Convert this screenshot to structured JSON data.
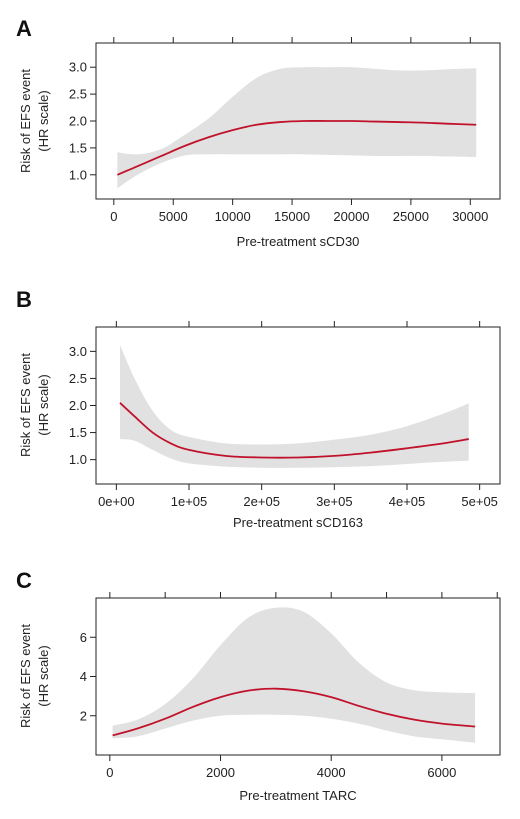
{
  "figure": {
    "colors": {
      "curve": "#c0122b",
      "band": "#dcdcdc",
      "axis": "#222222"
    }
  },
  "chart_data": [
    {
      "type": "line",
      "panel_label": "A",
      "xlabel": "Pre-treatment sCD30",
      "ylabel": [
        "Risk of EFS event",
        "(HR scale)"
      ],
      "xlim": [
        -1500,
        32500
      ],
      "ylim": [
        0.55,
        3.45
      ],
      "x_ticks": [
        {
          "value": 0,
          "label": "0"
        },
        {
          "value": 5000,
          "label": "5000"
        },
        {
          "value": 10000,
          "label": "10000"
        },
        {
          "value": 15000,
          "label": "15000"
        },
        {
          "value": 20000,
          "label": "20000"
        },
        {
          "value": 25000,
          "label": "25000"
        },
        {
          "value": 30000,
          "label": "30000"
        }
      ],
      "y_ticks": [
        {
          "value": 1.0,
          "label": "1.0"
        },
        {
          "value": 1.5,
          "label": "1.5"
        },
        {
          "value": 2.0,
          "label": "2.0"
        },
        {
          "value": 2.5,
          "label": "2.5"
        },
        {
          "value": 3.0,
          "label": "3.0"
        }
      ],
      "top_ticks": [
        0,
        5000,
        10000,
        15000,
        20000,
        25000,
        30000
      ],
      "grid": false,
      "series": [
        {
          "x": [
            300,
            2000,
            4000,
            6000,
            8000,
            10000,
            12000,
            14000,
            16000,
            18000,
            20000,
            22000,
            24000,
            26000,
            28000,
            30500
          ],
          "y": [
            1.0,
            1.16,
            1.35,
            1.54,
            1.7,
            1.83,
            1.93,
            1.98,
            2.0,
            2.0,
            2.0,
            1.99,
            1.98,
            1.97,
            1.95,
            1.93
          ],
          "lower": [
            0.75,
            1.0,
            1.22,
            1.36,
            1.38,
            1.38,
            1.38,
            1.38,
            1.38,
            1.37,
            1.36,
            1.35,
            1.35,
            1.35,
            1.34,
            1.33
          ],
          "upper": [
            1.42,
            1.38,
            1.48,
            1.75,
            2.05,
            2.45,
            2.8,
            2.97,
            3.0,
            3.0,
            3.0,
            2.97,
            2.94,
            2.94,
            2.96,
            2.98
          ]
        }
      ]
    },
    {
      "type": "line",
      "panel_label": "B",
      "xlabel": "Pre-treatment sCD163",
      "ylabel": [
        "Risk of EFS event",
        "(HR scale)"
      ],
      "xlim": [
        -28000,
        528000
      ],
      "ylim": [
        0.55,
        3.45
      ],
      "x_ticks": [
        {
          "value": 0,
          "label": "0e+00"
        },
        {
          "value": 100000,
          "label": "1e+05"
        },
        {
          "value": 200000,
          "label": "2e+05"
        },
        {
          "value": 300000,
          "label": "3e+05"
        },
        {
          "value": 400000,
          "label": "4e+05"
        },
        {
          "value": 500000,
          "label": "5e+05"
        }
      ],
      "y_ticks": [
        {
          "value": 1.0,
          "label": "1.0"
        },
        {
          "value": 1.5,
          "label": "1.5"
        },
        {
          "value": 2.0,
          "label": "2.0"
        },
        {
          "value": 2.5,
          "label": "2.5"
        },
        {
          "value": 3.0,
          "label": "3.0"
        }
      ],
      "top_ticks": [
        0,
        100000,
        200000,
        300000,
        400000,
        500000
      ],
      "grid": false,
      "series": [
        {
          "x": [
            5000,
            25000,
            50000,
            75000,
            100000,
            150000,
            200000,
            250000,
            300000,
            350000,
            400000,
            450000,
            485000
          ],
          "y": [
            2.05,
            1.8,
            1.5,
            1.3,
            1.18,
            1.07,
            1.04,
            1.04,
            1.07,
            1.13,
            1.21,
            1.3,
            1.38
          ],
          "lower": [
            1.38,
            1.35,
            1.18,
            1.02,
            0.93,
            0.87,
            0.85,
            0.85,
            0.86,
            0.88,
            0.92,
            0.96,
            0.98
          ],
          "upper": [
            3.12,
            2.5,
            1.9,
            1.55,
            1.42,
            1.3,
            1.28,
            1.3,
            1.37,
            1.46,
            1.62,
            1.85,
            2.04
          ]
        }
      ]
    },
    {
      "type": "line",
      "panel_label": "C",
      "xlabel": "Pre-treatment TARC",
      "ylabel": [
        "Risk of EFS event",
        "(HR scale)"
      ],
      "xlim": [
        -250,
        7050
      ],
      "ylim": [
        0.0,
        8.0
      ],
      "x_ticks": [
        {
          "value": 0,
          "label": "0"
        },
        {
          "value": 2000,
          "label": "2000"
        },
        {
          "value": 4000,
          "label": "4000"
        },
        {
          "value": 6000,
          "label": "6000"
        }
      ],
      "y_ticks": [
        {
          "value": 2,
          "label": "2"
        },
        {
          "value": 4,
          "label": "4"
        },
        {
          "value": 6,
          "label": "6"
        }
      ],
      "top_ticks": [
        0,
        1000,
        2000,
        3000,
        4000,
        5000,
        6000,
        7000
      ],
      "grid": false,
      "series": [
        {
          "x": [
            50,
            500,
            1000,
            1500,
            2000,
            2500,
            3000,
            3500,
            4000,
            4500,
            5000,
            5500,
            6000,
            6600
          ],
          "y": [
            1.0,
            1.35,
            1.85,
            2.45,
            2.95,
            3.28,
            3.38,
            3.25,
            2.95,
            2.5,
            2.1,
            1.8,
            1.6,
            1.45
          ],
          "lower": [
            0.85,
            0.95,
            1.35,
            1.75,
            2.0,
            2.05,
            2.05,
            2.0,
            1.85,
            1.6,
            1.25,
            0.95,
            0.8,
            0.62
          ],
          "upper": [
            1.5,
            1.8,
            2.6,
            3.9,
            5.6,
            7.0,
            7.5,
            7.3,
            6.2,
            4.7,
            3.7,
            3.3,
            3.2,
            3.15
          ]
        }
      ]
    }
  ]
}
